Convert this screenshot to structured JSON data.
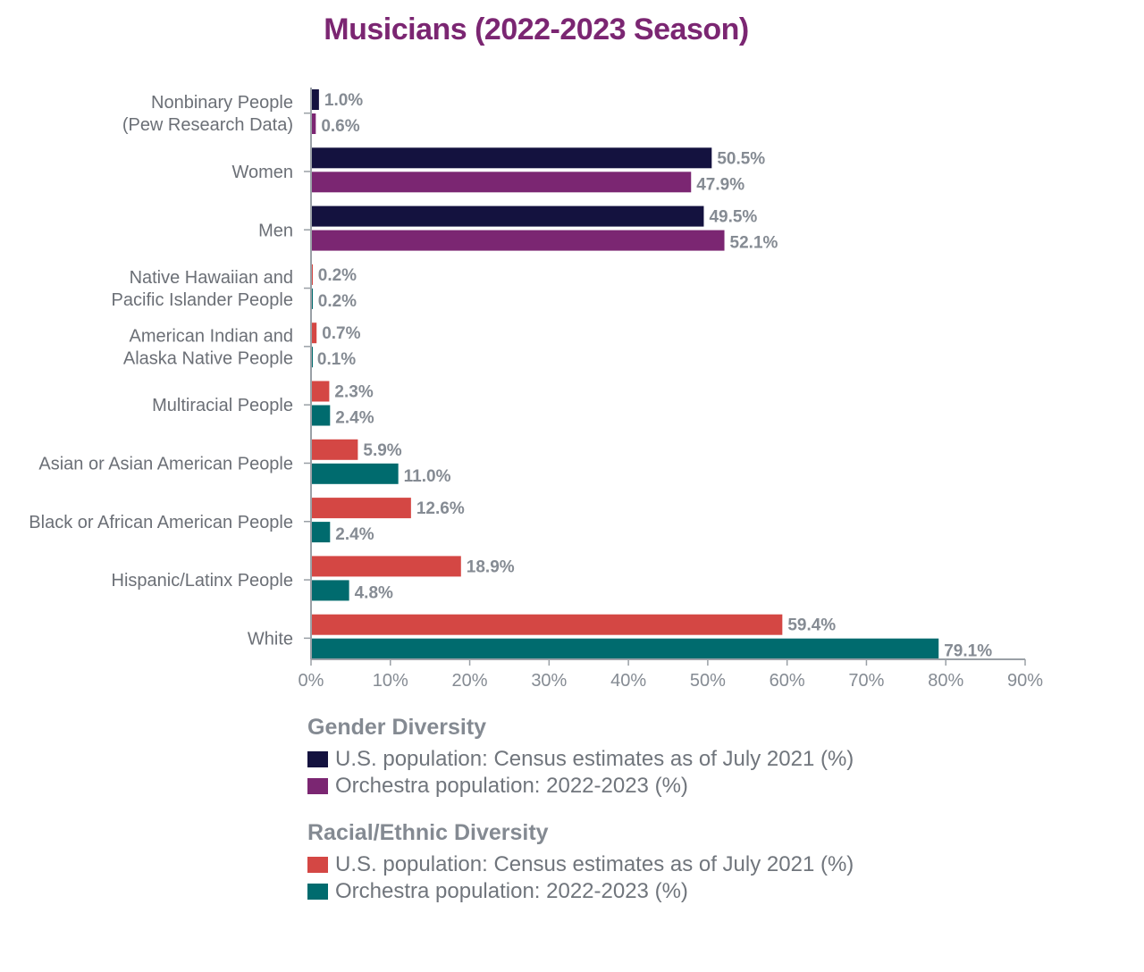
{
  "chart_data": {
    "type": "bar",
    "orientation": "horizontal",
    "title": "Musicians (2022-2023 Season)",
    "xlim": [
      0,
      90
    ],
    "x_ticks": [
      "0%",
      "10%",
      "20%",
      "30%",
      "40%",
      "50%",
      "60%",
      "70%",
      "80%",
      "90%"
    ],
    "categories": [
      {
        "label": [
          "Nonbinary People",
          "(Pew Research Data)"
        ],
        "group": "gender",
        "us": 1.0,
        "us_label": "1.0%",
        "orch": 0.6,
        "orch_label": "0.6%"
      },
      {
        "label": [
          "Women"
        ],
        "group": "gender",
        "us": 50.5,
        "us_label": "50.5%",
        "orch": 47.9,
        "orch_label": "47.9%"
      },
      {
        "label": [
          "Men"
        ],
        "group": "gender",
        "us": 49.5,
        "us_label": "49.5%",
        "orch": 52.1,
        "orch_label": "52.1%"
      },
      {
        "label": [
          "Native Hawaiian and",
          "Pacific Islander People"
        ],
        "group": "race",
        "us": 0.2,
        "us_label": "0.2%",
        "orch": 0.2,
        "orch_label": "0.2%"
      },
      {
        "label": [
          "American Indian and",
          "Alaska Native People"
        ],
        "group": "race",
        "us": 0.7,
        "us_label": "0.7%",
        "orch": 0.1,
        "orch_label": "0.1%"
      },
      {
        "label": [
          "Multiracial People"
        ],
        "group": "race",
        "us": 2.3,
        "us_label": "2.3%",
        "orch": 2.4,
        "orch_label": "2.4%"
      },
      {
        "label": [
          "Asian or Asian American People"
        ],
        "group": "race",
        "us": 5.9,
        "us_label": "5.9%",
        "orch": 11.0,
        "orch_label": "11.0%"
      },
      {
        "label": [
          "Black or African American People"
        ],
        "group": "race",
        "us": 12.6,
        "us_label": "12.6%",
        "orch": 2.4,
        "orch_label": "2.4%"
      },
      {
        "label": [
          "Hispanic/Latinx People"
        ],
        "group": "race",
        "us": 18.9,
        "us_label": "18.9%",
        "orch": 4.8,
        "orch_label": "4.8%"
      },
      {
        "label": [
          "White"
        ],
        "group": "race",
        "us": 59.4,
        "us_label": "59.4%",
        "orch": 79.1,
        "orch_label": "79.1%"
      }
    ],
    "colors": {
      "gender_us": "#14123f",
      "gender_orch": "#7b2672",
      "race_us": "#d44744",
      "race_orch": "#006b6e"
    },
    "legend": {
      "gender_title": "Gender Diversity",
      "gender_items": [
        "U.S. population: Census estimates as of July 2021 (%)",
        "Orchestra population: 2022-2023 (%)"
      ],
      "race_title": "Racial/Ethnic Diversity",
      "race_items": [
        "U.S. population: Census estimates as of July 2021 (%)",
        "Orchestra population: 2022-2023 (%)"
      ]
    }
  }
}
